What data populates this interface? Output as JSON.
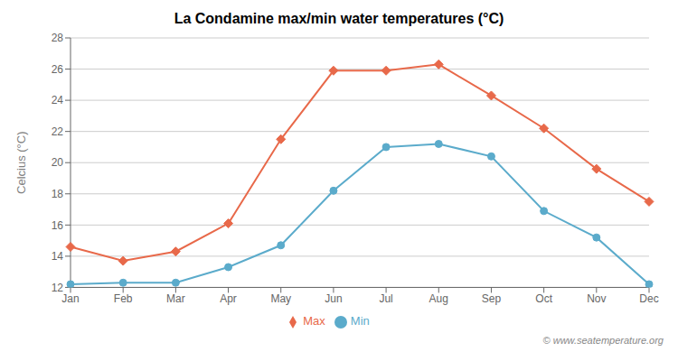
{
  "chart_data": {
    "type": "line",
    "title": "La Condamine max/min water temperatures (°C)",
    "ylabel": "Celcius (°C)",
    "categories": [
      "Jan",
      "Feb",
      "Mar",
      "Apr",
      "May",
      "Jun",
      "Jul",
      "Aug",
      "Sep",
      "Oct",
      "Nov",
      "Dec"
    ],
    "series": [
      {
        "name": "Max",
        "color": "#e8694a",
        "marker": "diamond",
        "values": [
          14.6,
          13.7,
          14.3,
          16.1,
          21.5,
          25.9,
          25.9,
          26.3,
          24.3,
          22.2,
          19.6,
          17.5
        ]
      },
      {
        "name": "Min",
        "color": "#5babcb",
        "marker": "circle",
        "values": [
          12.2,
          12.3,
          12.3,
          13.3,
          14.7,
          18.2,
          21.0,
          21.2,
          20.4,
          16.9,
          15.2,
          12.2
        ]
      }
    ],
    "ylim": [
      12,
      28
    ],
    "yticks": [
      12,
      14,
      16,
      18,
      20,
      22,
      24,
      26,
      28
    ],
    "grid": true,
    "legend": "bottom",
    "annotation": "© www.seatemperature.org"
  }
}
